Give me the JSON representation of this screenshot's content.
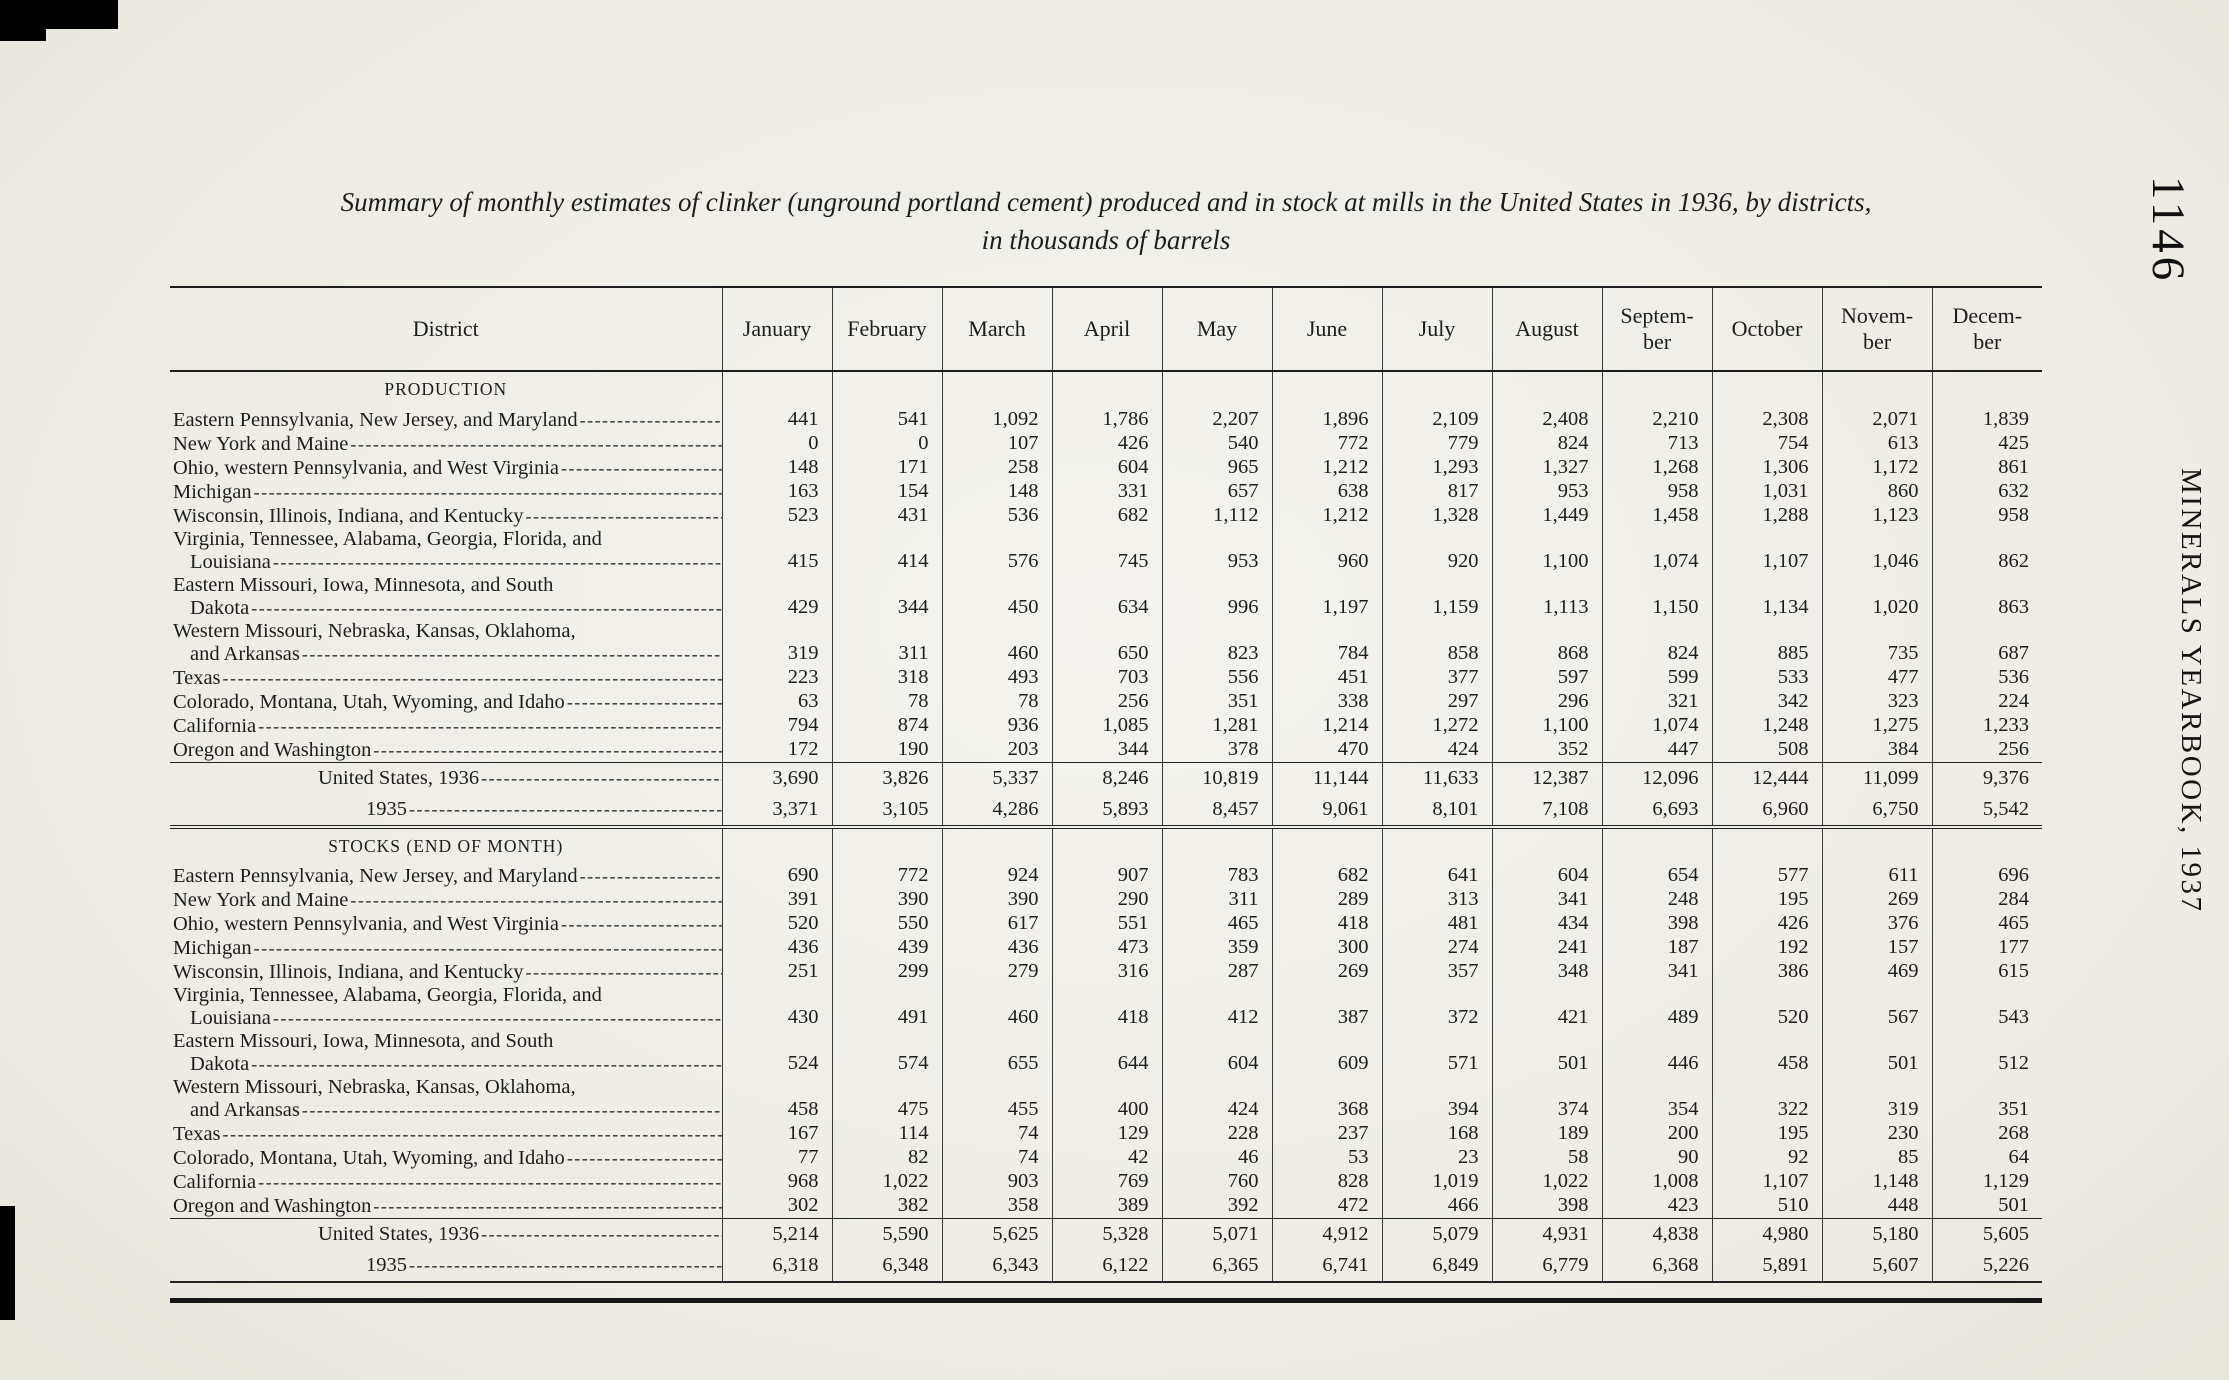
{
  "page": {
    "number": "1146",
    "side_label": "MINERALS YEARBOOK, 1937"
  },
  "title": {
    "line1": "Summary of monthly estimates of clinker (unground portland cement) produced and in stock at mills in the United States in 1936, by districts,",
    "line2": "in thousands of barrels"
  },
  "table": {
    "district_header": "District",
    "month_headers": [
      "January",
      "February",
      "March",
      "April",
      "May",
      "June",
      "July",
      "August",
      "Septem-|ber",
      "October",
      "Novem-|ber",
      "Decem-|ber"
    ],
    "sections": [
      {
        "heading": "PRODUCTION",
        "rows": [
          {
            "d": "Eastern Pennsylvania, New Jersey, and Maryland",
            "v": [
              "441",
              "541",
              "1,092",
              "1,786",
              "2,207",
              "1,896",
              "2,109",
              "2,408",
              "2,210",
              "2,308",
              "2,071",
              "1,839"
            ]
          },
          {
            "d": "New York and Maine",
            "v": [
              "0",
              "0",
              "107",
              "426",
              "540",
              "772",
              "779",
              "824",
              "713",
              "754",
              "613",
              "425"
            ]
          },
          {
            "d": "Ohio, western Pennsylvania, and West Virginia",
            "v": [
              "148",
              "171",
              "258",
              "604",
              "965",
              "1,212",
              "1,293",
              "1,327",
              "1,268",
              "1,306",
              "1,172",
              "861"
            ]
          },
          {
            "d": "Michigan",
            "v": [
              "163",
              "154",
              "148",
              "331",
              "657",
              "638",
              "817",
              "953",
              "958",
              "1,031",
              "860",
              "632"
            ]
          },
          {
            "d": "Wisconsin, Illinois, Indiana, and Kentucky",
            "v": [
              "523",
              "431",
              "536",
              "682",
              "1,112",
              "1,212",
              "1,328",
              "1,449",
              "1,458",
              "1,288",
              "1,123",
              "958"
            ]
          },
          {
            "d": "Virginia, Tennessee, Alabama, Georgia, Florida, and",
            "d2": "Louisiana",
            "v": [
              "415",
              "414",
              "576",
              "745",
              "953",
              "960",
              "920",
              "1,100",
              "1,074",
              "1,107",
              "1,046",
              "862"
            ]
          },
          {
            "d": "Eastern Missouri, Iowa, Minnesota, and South",
            "d2": "Dakota",
            "v": [
              "429",
              "344",
              "450",
              "634",
              "996",
              "1,197",
              "1,159",
              "1,113",
              "1,150",
              "1,134",
              "1,020",
              "863"
            ]
          },
          {
            "d": "Western Missouri, Nebraska, Kansas, Oklahoma,",
            "d2": "and Arkansas",
            "v": [
              "319",
              "311",
              "460",
              "650",
              "823",
              "784",
              "858",
              "868",
              "824",
              "885",
              "735",
              "687"
            ]
          },
          {
            "d": "Texas",
            "v": [
              "223",
              "318",
              "493",
              "703",
              "556",
              "451",
              "377",
              "597",
              "599",
              "533",
              "477",
              "536"
            ]
          },
          {
            "d": "Colorado, Montana, Utah, Wyoming, and Idaho",
            "v": [
              "63",
              "78",
              "78",
              "256",
              "351",
              "338",
              "297",
              "296",
              "321",
              "342",
              "323",
              "224"
            ]
          },
          {
            "d": "California",
            "v": [
              "794",
              "874",
              "936",
              "1,085",
              "1,281",
              "1,214",
              "1,272",
              "1,100",
              "1,074",
              "1,248",
              "1,275",
              "1,233"
            ]
          },
          {
            "d": "Oregon and Washington",
            "v": [
              "172",
              "190",
              "203",
              "344",
              "378",
              "470",
              "424",
              "352",
              "447",
              "508",
              "384",
              "256"
            ]
          }
        ],
        "totals": [
          {
            "label": "United States, 1936",
            "v": [
              "3,690",
              "3,826",
              "5,337",
              "8,246",
              "10,819",
              "11,144",
              "11,633",
              "12,387",
              "12,096",
              "12,444",
              "11,099",
              "9,376"
            ]
          },
          {
            "label": "1935",
            "v": [
              "3,371",
              "3,105",
              "4,286",
              "5,893",
              "8,457",
              "9,061",
              "8,101",
              "7,108",
              "6,693",
              "6,960",
              "6,750",
              "5,542"
            ]
          }
        ]
      },
      {
        "heading": "STOCKS (END OF MONTH)",
        "rows": [
          {
            "d": "Eastern Pennsylvania, New Jersey, and Maryland",
            "v": [
              "690",
              "772",
              "924",
              "907",
              "783",
              "682",
              "641",
              "604",
              "654",
              "577",
              "611",
              "696"
            ]
          },
          {
            "d": "New York and Maine",
            "v": [
              "391",
              "390",
              "390",
              "290",
              "311",
              "289",
              "313",
              "341",
              "248",
              "195",
              "269",
              "284"
            ]
          },
          {
            "d": "Ohio, western Pennsylvania, and West Virginia",
            "v": [
              "520",
              "550",
              "617",
              "551",
              "465",
              "418",
              "481",
              "434",
              "398",
              "426",
              "376",
              "465"
            ]
          },
          {
            "d": "Michigan",
            "v": [
              "436",
              "439",
              "436",
              "473",
              "359",
              "300",
              "274",
              "241",
              "187",
              "192",
              "157",
              "177"
            ]
          },
          {
            "d": "Wisconsin, Illinois, Indiana, and Kentucky",
            "v": [
              "251",
              "299",
              "279",
              "316",
              "287",
              "269",
              "357",
              "348",
              "341",
              "386",
              "469",
              "615"
            ]
          },
          {
            "d": "Virginia, Tennessee, Alabama, Georgia, Florida, and",
            "d2": "Louisiana",
            "v": [
              "430",
              "491",
              "460",
              "418",
              "412",
              "387",
              "372",
              "421",
              "489",
              "520",
              "567",
              "543"
            ]
          },
          {
            "d": "Eastern Missouri, Iowa, Minnesota, and South",
            "d2": "Dakota",
            "v": [
              "524",
              "574",
              "655",
              "644",
              "604",
              "609",
              "571",
              "501",
              "446",
              "458",
              "501",
              "512"
            ]
          },
          {
            "d": "Western Missouri, Nebraska, Kansas, Oklahoma,",
            "d2": "and Arkansas",
            "v": [
              "458",
              "475",
              "455",
              "400",
              "424",
              "368",
              "394",
              "374",
              "354",
              "322",
              "319",
              "351"
            ]
          },
          {
            "d": "Texas",
            "v": [
              "167",
              "114",
              "74",
              "129",
              "228",
              "237",
              "168",
              "189",
              "200",
              "195",
              "230",
              "268"
            ]
          },
          {
            "d": "Colorado, Montana, Utah, Wyoming, and Idaho",
            "v": [
              "77",
              "82",
              "74",
              "42",
              "46",
              "53",
              "23",
              "58",
              "90",
              "92",
              "85",
              "64"
            ]
          },
          {
            "d": "California",
            "v": [
              "968",
              "1,022",
              "903",
              "769",
              "760",
              "828",
              "1,019",
              "1,022",
              "1,008",
              "1,107",
              "1,148",
              "1,129"
            ]
          },
          {
            "d": "Oregon and Washington",
            "v": [
              "302",
              "382",
              "358",
              "389",
              "392",
              "472",
              "466",
              "398",
              "423",
              "510",
              "448",
              "501"
            ]
          }
        ],
        "totals": [
          {
            "label": "United States, 1936",
            "v": [
              "5,214",
              "5,590",
              "5,625",
              "5,328",
              "5,071",
              "4,912",
              "5,079",
              "4,931",
              "4,838",
              "4,980",
              "5,180",
              "5,605"
            ]
          },
          {
            "label": "1935",
            "v": [
              "6,318",
              "6,348",
              "6,343",
              "6,122",
              "6,365",
              "6,741",
              "6,849",
              "6,779",
              "6,368",
              "5,891",
              "5,607",
              "5,226"
            ]
          }
        ]
      }
    ]
  }
}
